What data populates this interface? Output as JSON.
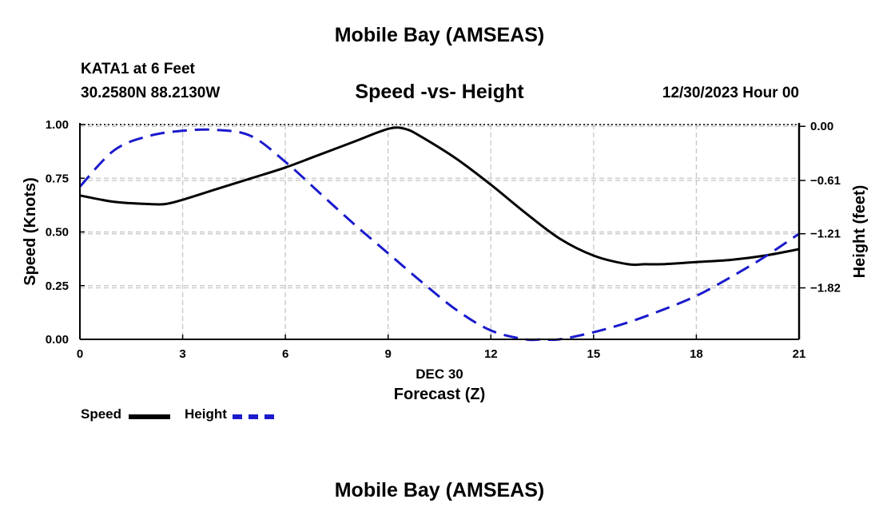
{
  "header": {
    "main_title": "Mobile Bay (AMSEAS)",
    "station_name": "KATA1 at 6 Feet",
    "station_coords": "30.2580N  88.2130W",
    "chart_title": "Speed -vs- Height",
    "date_label": "12/30/2023 Hour 00"
  },
  "footer": {
    "title": "Mobile Bay (AMSEAS)"
  },
  "legend": {
    "speed_label": "Speed",
    "height_label": "Height"
  },
  "chart_data": {
    "type": "line",
    "title": "Speed -vs- Height",
    "xlabel": "Forecast (Z)",
    "x_sublabel": "DEC 30",
    "ylabel": "Speed (Knots)",
    "y2label": "Height (feet)",
    "xlim": [
      0,
      21
    ],
    "ylim": [
      0,
      1
    ],
    "y2lim": [
      -2.4,
      0.02
    ],
    "x_ticks": [
      0,
      3,
      6,
      9,
      12,
      15,
      18,
      21
    ],
    "x_tick_labels": [
      "0",
      "3",
      "6",
      "9",
      "12",
      "15",
      "18",
      "21"
    ],
    "y_ticks": [
      0,
      0.25,
      0.5,
      0.75,
      1.0
    ],
    "y_tick_labels": [
      "0.00",
      "0.25",
      "0.50",
      "0.75",
      "1.00"
    ],
    "y2_ticks": [
      0.0,
      -0.61,
      -1.21,
      -1.82
    ],
    "y2_tick_labels": [
      "0.00",
      "−0.61",
      "−1.21",
      "−1.82"
    ],
    "grid": true,
    "series": [
      {
        "name": "Speed",
        "axis": "left",
        "color": "#000000",
        "dash": "solid",
        "x": [
          0,
          1,
          2,
          2.5,
          3,
          4,
          5,
          6,
          7,
          8,
          9,
          9.5,
          10,
          11,
          12,
          13,
          14,
          15,
          16,
          16.5,
          17,
          18,
          19,
          20,
          21
        ],
        "values": [
          0.67,
          0.64,
          0.63,
          0.63,
          0.65,
          0.7,
          0.75,
          0.8,
          0.86,
          0.92,
          0.98,
          0.98,
          0.94,
          0.84,
          0.72,
          0.59,
          0.47,
          0.39,
          0.35,
          0.35,
          0.35,
          0.36,
          0.37,
          0.39,
          0.42
        ]
      },
      {
        "name": "Height",
        "axis": "right",
        "color": "#1a1acc",
        "dash": "dashed",
        "x": [
          0,
          1,
          2,
          3,
          4,
          5,
          6,
          7,
          8,
          9,
          10,
          11,
          12,
          13,
          13.5,
          14,
          15,
          16,
          17,
          18,
          19,
          20,
          21
        ],
        "values": [
          -0.68,
          -0.27,
          -0.11,
          -0.05,
          -0.04,
          -0.11,
          -0.4,
          -0.75,
          -1.1,
          -1.43,
          -1.76,
          -2.07,
          -2.3,
          -2.4,
          -2.4,
          -2.4,
          -2.32,
          -2.21,
          -2.07,
          -1.91,
          -1.7,
          -1.47,
          -1.21
        ]
      }
    ]
  }
}
